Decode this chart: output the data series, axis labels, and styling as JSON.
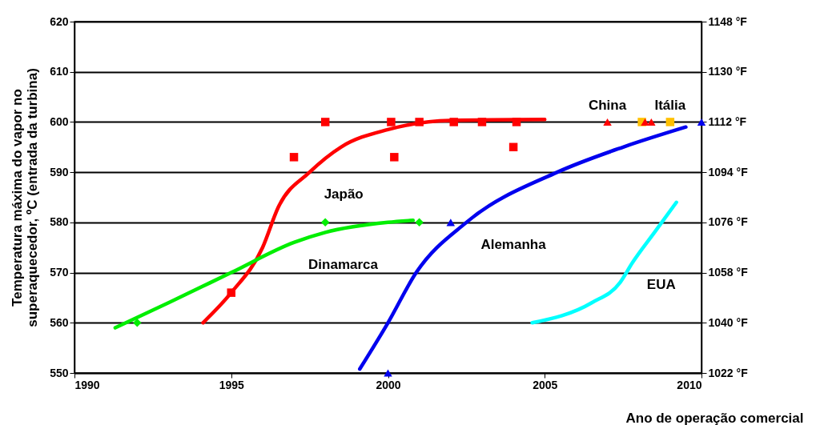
{
  "chart_data": {
    "type": "line",
    "xlabel": "Ano de operação comercial",
    "ylabel": "Temperatura máxima do vapor no\nsuperaquecedor, ºC (entrada da turbina)",
    "xlim": [
      1990,
      2010
    ],
    "xticks": [
      1990,
      1995,
      2000,
      2005,
      2010
    ],
    "ylim": [
      550,
      620
    ],
    "yticks": [
      550,
      560,
      570,
      580,
      590,
      600,
      610,
      620
    ],
    "y2lim": [
      1022,
      1148
    ],
    "y2ticks": [
      {
        "value": 1022,
        "label": "1022 °F"
      },
      {
        "value": 1040,
        "label": "1040 °F"
      },
      {
        "value": 1058,
        "label": "1058 °F"
      },
      {
        "value": 1076,
        "label": "1076 °F"
      },
      {
        "value": 1094,
        "label": "1094 °F"
      },
      {
        "value": 1112,
        "label": "1112 °F"
      },
      {
        "value": 1130,
        "label": "1130 °F"
      },
      {
        "value": 1148,
        "label": "1148 °F"
      }
    ],
    "grid": "y",
    "line_style": "solid",
    "series": [
      {
        "name": "Japão",
        "color": "#ff0000",
        "marker": "none",
        "x": [
          1994.1,
          1995,
          1996,
          1996.5,
          1997.5,
          1998.5,
          2000,
          2002,
          2005
        ],
        "values": [
          560,
          566,
          575,
          583,
          590,
          595,
          598.5,
          600.3,
          600.5
        ]
      },
      {
        "type": "scatter",
        "color": "#ff0000",
        "marker": "square",
        "x": [
          1995,
          1997,
          1998,
          2000.1,
          2000.2,
          2001,
          2002.1,
          2003,
          2004,
          2004.1
        ],
        "values": [
          566,
          593,
          600,
          600,
          593,
          600,
          600,
          600,
          595,
          600
        ]
      },
      {
        "name": "Dinamarca",
        "color": "#00ee00",
        "marker": "none",
        "x": [
          1991.3,
          1993,
          1995,
          1997,
          1998,
          2000,
          2000.8
        ],
        "values": [
          559,
          564,
          570,
          576,
          578,
          580,
          580.4
        ]
      },
      {
        "type": "scatter",
        "color": "#00ee00",
        "marker": "diamond",
        "x": [
          1992,
          1998,
          2001
        ],
        "values": [
          560,
          580,
          580
        ]
      },
      {
        "name": "Alemanha",
        "color": "#0000ee",
        "marker": "none",
        "x": [
          1999.1,
          2000,
          2000.9,
          2002.5,
          2005.4,
          2007.5,
          2009.5
        ],
        "values": [
          550.8,
          560,
          570,
          580,
          590,
          595,
          599
        ]
      },
      {
        "type": "scatter",
        "color": "#0000ee",
        "marker": "triangle",
        "x": [
          2000,
          2002,
          2010
        ],
        "values": [
          550,
          580,
          600
        ]
      },
      {
        "name": "EUA",
        "color": "#00ffff",
        "marker": "none",
        "x": [
          2004.6,
          2006.5,
          2007.4,
          2007.8,
          2008.5,
          2009.2
        ],
        "values": [
          560,
          564,
          568,
          572,
          578,
          584
        ]
      },
      {
        "type": "scatter",
        "name": "China",
        "color": "#ff0000",
        "marker": "triangle",
        "x": [
          2007
        ],
        "values": [
          600
        ]
      },
      {
        "type": "scatter",
        "name": "Itália",
        "color": "#ffc000",
        "marker": "square",
        "x": [
          2008.1,
          2009
        ],
        "values": [
          600,
          600
        ]
      },
      {
        "type": "scatter",
        "color": "#ff0000",
        "marker": "triangle",
        "x": [
          2008.2,
          2008.4
        ],
        "values": [
          600,
          600
        ]
      }
    ]
  }
}
